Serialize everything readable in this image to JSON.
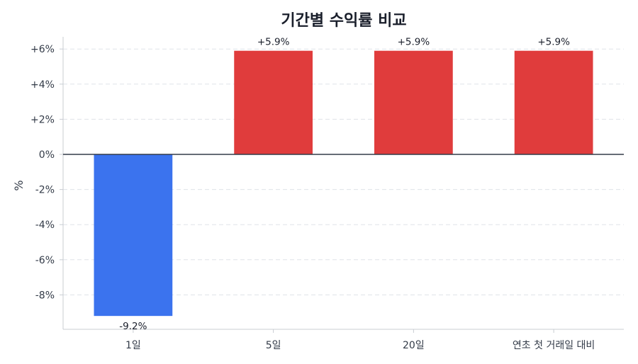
{
  "chart_data": {
    "type": "bar",
    "title": "기간별 수익률 비교",
    "xlabel": "",
    "ylabel": "%",
    "categories": [
      "1일",
      "5일",
      "20일",
      "연초 첫 거래일 대비"
    ],
    "values": [
      -9.2,
      5.9,
      5.9,
      5.9
    ],
    "data_labels": [
      "-9.2%",
      "+5.9%",
      "+5.9%",
      "+5.9%"
    ],
    "ylim": [
      -10,
      6.7
    ],
    "yticks": [
      6,
      4,
      2,
      0,
      -2,
      -4,
      -6,
      -8
    ],
    "ytick_labels": [
      "+6%",
      "+4%",
      "+2%",
      "0%",
      "-2%",
      "-4%",
      "-6%",
      "-8%"
    ],
    "grid": true,
    "colors": {
      "positive": "#e03c3c",
      "negative": "#3b73ee",
      "grid": "#dfe3e8",
      "zero_line": "#333b48",
      "axis": "#c8ccd2"
    }
  }
}
